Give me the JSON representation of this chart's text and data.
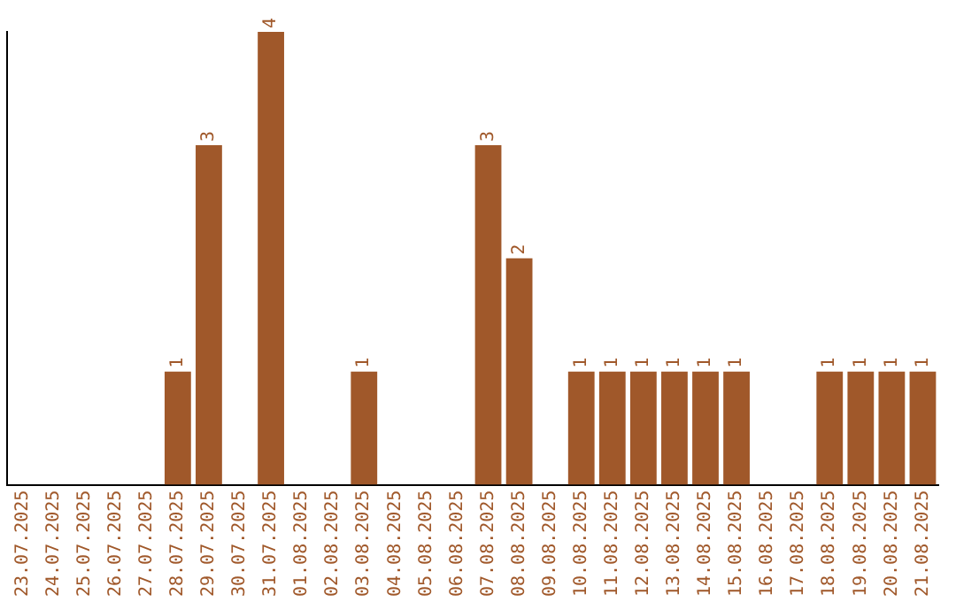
{
  "chart_data": {
    "type": "bar",
    "categories": [
      "23.07.2025",
      "24.07.2025",
      "25.07.2025",
      "26.07.2025",
      "27.07.2025",
      "28.07.2025",
      "29.07.2025",
      "30.07.2025",
      "31.07.2025",
      "01.08.2025",
      "02.08.2025",
      "03.08.2025",
      "04.08.2025",
      "05.08.2025",
      "06.08.2025",
      "07.08.2025",
      "08.08.2025",
      "09.08.2025",
      "10.08.2025",
      "11.08.2025",
      "12.08.2025",
      "13.08.2025",
      "14.08.2025",
      "15.08.2025",
      "16.08.2025",
      "17.08.2025",
      "18.08.2025",
      "19.08.2025",
      "20.08.2025",
      "21.08.2025"
    ],
    "values": [
      0,
      0,
      0,
      0,
      0,
      1,
      3,
      0,
      4,
      0,
      0,
      1,
      0,
      0,
      0,
      3,
      2,
      0,
      1,
      1,
      1,
      1,
      1,
      1,
      0,
      0,
      1,
      1,
      1,
      1
    ],
    "value_labels": [
      null,
      null,
      null,
      null,
      null,
      "1",
      "3",
      null,
      "4",
      null,
      null,
      "1",
      null,
      null,
      null,
      "3",
      "2",
      null,
      "1",
      "1",
      "1",
      "1",
      "1",
      "1",
      null,
      null,
      "1",
      "1",
      "1",
      "1"
    ],
    "color": "#a0582a",
    "grid": false,
    "legend": false,
    "tick_labels": "x"
  }
}
